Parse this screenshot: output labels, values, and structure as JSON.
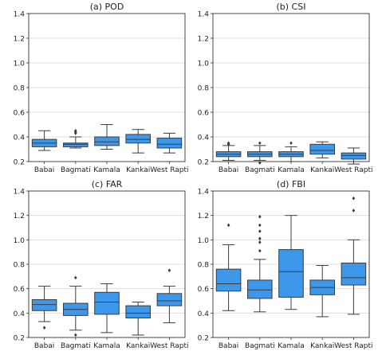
{
  "chart_data": [
    {
      "type": "box",
      "title": "(a) POD",
      "categories": [
        "Babai",
        "Bagmati",
        "Kamala",
        "Kankai",
        "West Rapti"
      ],
      "ylim": [
        0.2,
        1.4
      ],
      "yticks": [
        0.2,
        0.4,
        0.6,
        0.8,
        1.0,
        1.2,
        1.4
      ],
      "ytick_labels": [
        "0.2",
        "0.4",
        "0.6",
        "0.8",
        "1.0",
        "1.2",
        "1.4"
      ],
      "grid": true,
      "color": "#3d97ea",
      "boxes": [
        {
          "whislo": 0.29,
          "q1": 0.32,
          "med": 0.35,
          "q3": 0.38,
          "whishi": 0.45,
          "fliers": []
        },
        {
          "whislo": 0.31,
          "q1": 0.32,
          "med": 0.34,
          "q3": 0.35,
          "whishi": 0.4,
          "fliers": [
            0.43,
            0.44,
            0.45
          ]
        },
        {
          "whislo": 0.3,
          "q1": 0.33,
          "med": 0.36,
          "q3": 0.4,
          "whishi": 0.5,
          "fliers": []
        },
        {
          "whislo": 0.27,
          "q1": 0.35,
          "med": 0.38,
          "q3": 0.42,
          "whishi": 0.46,
          "fliers": []
        },
        {
          "whislo": 0.27,
          "q1": 0.31,
          "med": 0.34,
          "q3": 0.39,
          "whishi": 0.43,
          "fliers": []
        }
      ]
    },
    {
      "type": "box",
      "title": "(b) CSI",
      "categories": [
        "Babai",
        "Bagmati",
        "Kamala",
        "Kankai",
        "West Rapti"
      ],
      "ylim": [
        0.2,
        1.4
      ],
      "yticks": [
        0.2,
        0.4,
        0.6,
        0.8,
        1.0,
        1.2,
        1.4
      ],
      "ytick_labels": [
        "0.2",
        "0.4",
        "0.6",
        "0.8",
        "1.0",
        "1.2",
        "1.4"
      ],
      "grid": true,
      "color": "#3d97ea",
      "boxes": [
        {
          "whislo": 0.21,
          "q1": 0.24,
          "med": 0.26,
          "q3": 0.28,
          "whishi": 0.33,
          "fliers": [
            0.34,
            0.35
          ]
        },
        {
          "whislo": 0.21,
          "q1": 0.24,
          "med": 0.26,
          "q3": 0.28,
          "whishi": 0.33,
          "fliers": [
            0.19,
            0.35
          ]
        },
        {
          "whislo": 0.2,
          "q1": 0.24,
          "med": 0.26,
          "q3": 0.28,
          "whishi": 0.32,
          "fliers": [
            0.35
          ]
        },
        {
          "whislo": 0.23,
          "q1": 0.26,
          "med": 0.29,
          "q3": 0.34,
          "whishi": 0.36,
          "fliers": []
        },
        {
          "whislo": 0.18,
          "q1": 0.22,
          "med": 0.25,
          "q3": 0.27,
          "whishi": 0.31,
          "fliers": []
        }
      ]
    },
    {
      "type": "box",
      "title": "(c) FAR",
      "categories": [
        "Babai",
        "Bagmati",
        "Kamala",
        "Kankai",
        "West Rapti"
      ],
      "ylim": [
        0.2,
        1.4
      ],
      "yticks": [
        0.2,
        0.4,
        0.6,
        0.8,
        1.0,
        1.2,
        1.4
      ],
      "ytick_labels": [
        "0.2",
        "0.4",
        "0.6",
        "0.8",
        "1.0",
        "1.2",
        "1.4"
      ],
      "grid": true,
      "color": "#3d97ea",
      "boxes": [
        {
          "whislo": 0.33,
          "q1": 0.42,
          "med": 0.47,
          "q3": 0.51,
          "whishi": 0.62,
          "fliers": [
            0.28
          ]
        },
        {
          "whislo": 0.26,
          "q1": 0.38,
          "med": 0.43,
          "q3": 0.48,
          "whishi": 0.62,
          "fliers": [
            0.22,
            0.69
          ]
        },
        {
          "whislo": 0.24,
          "q1": 0.39,
          "med": 0.49,
          "q3": 0.57,
          "whishi": 0.64,
          "fliers": []
        },
        {
          "whislo": 0.22,
          "q1": 0.36,
          "med": 0.4,
          "q3": 0.46,
          "whishi": 0.49,
          "fliers": []
        },
        {
          "whislo": 0.32,
          "q1": 0.46,
          "med": 0.5,
          "q3": 0.56,
          "whishi": 0.62,
          "fliers": [
            0.75
          ]
        }
      ]
    },
    {
      "type": "box",
      "title": "(d) FBI",
      "categories": [
        "Babai",
        "Bagmati",
        "Kamala",
        "Kankai",
        "West Rapti"
      ],
      "ylim": [
        0.2,
        1.4
      ],
      "yticks": [
        0.2,
        0.4,
        0.6,
        0.8,
        1.0,
        1.2,
        1.4
      ],
      "ytick_labels": [
        "0.2",
        "0.4",
        "0.6",
        "0.8",
        "1.0",
        "1.2",
        "1.4"
      ],
      "grid": true,
      "color": "#3d97ea",
      "boxes": [
        {
          "whislo": 0.42,
          "q1": 0.58,
          "med": 0.64,
          "q3": 0.76,
          "whishi": 0.96,
          "fliers": [
            1.12
          ]
        },
        {
          "whislo": 0.41,
          "q1": 0.52,
          "med": 0.59,
          "q3": 0.67,
          "whishi": 0.84,
          "fliers": [
            0.91,
            0.98,
            1.01,
            1.07,
            1.12,
            1.19
          ]
        },
        {
          "whislo": 0.43,
          "q1": 0.53,
          "med": 0.74,
          "q3": 0.92,
          "whishi": 1.2,
          "fliers": []
        },
        {
          "whislo": 0.37,
          "q1": 0.55,
          "med": 0.61,
          "q3": 0.67,
          "whishi": 0.79,
          "fliers": []
        },
        {
          "whislo": 0.39,
          "q1": 0.63,
          "med": 0.69,
          "q3": 0.81,
          "whishi": 1.0,
          "fliers": [
            1.24,
            1.34
          ]
        }
      ]
    }
  ]
}
